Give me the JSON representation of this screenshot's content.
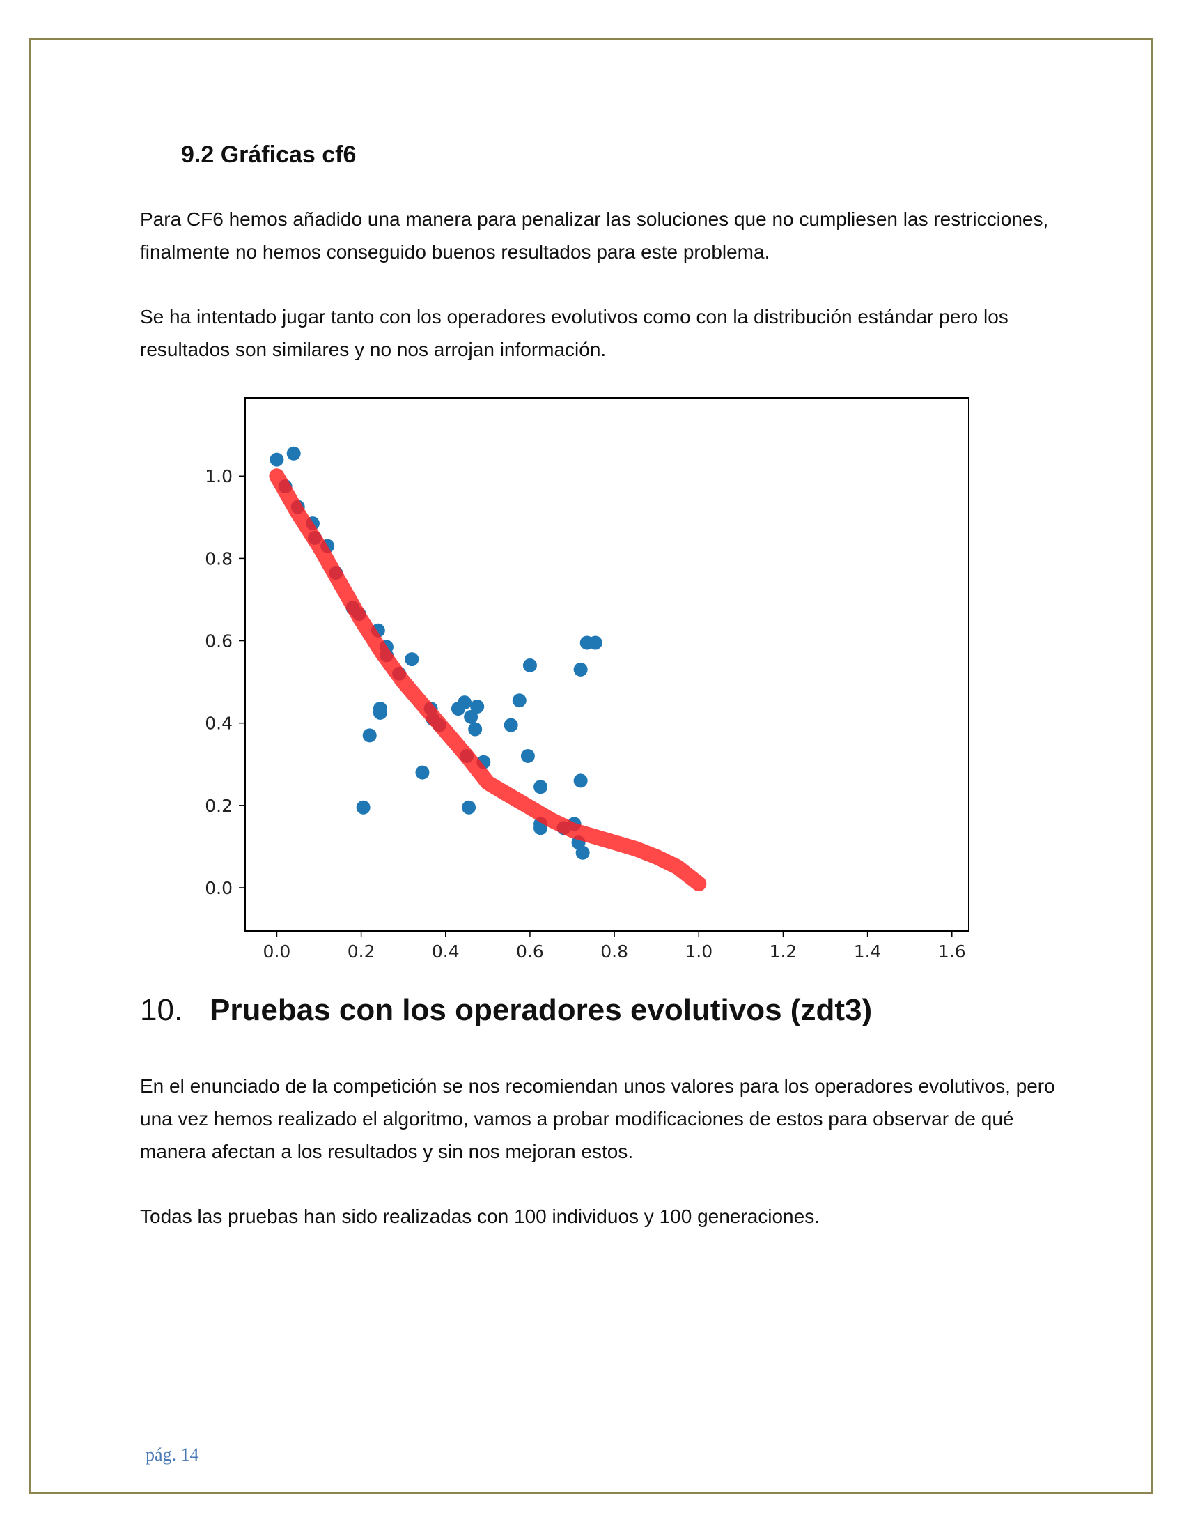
{
  "section_9_2": {
    "heading": "9.2 Gráficas cf6",
    "paragraph1": "Para CF6 hemos añadido una manera para penalizar las soluciones que no cumpliesen las restricciones, finalmente no hemos conseguido buenos resultados para este problema.",
    "paragraph2": "Se ha intentado jugar tanto con los operadores evolutivos como con la distribución estándar pero los resultados son similares y no nos arrojan información."
  },
  "section_10": {
    "number": "10.",
    "title": "Pruebas con los operadores evolutivos (zdt3)",
    "paragraph1": "En el enunciado de la competición se nos recomiendan unos valores para los operadores evolutivos, pero una vez hemos realizado el algoritmo, vamos a probar modificaciones de estos para observar de qué manera afectan a los resultados y sin nos mejoran estos.",
    "paragraph2": "Todas las pruebas han sido realizadas con 100 individuos y 100 generaciones."
  },
  "footer": {
    "page_label": "pág. 14"
  },
  "colors": {
    "border": "#8c8552",
    "scatter": "#1f77b4",
    "front": "#ff2020",
    "footer": "#4a7ab5"
  },
  "chart_data": {
    "type": "scatter",
    "title": "",
    "xlabel": "",
    "ylabel": "",
    "xlim": [
      -0.075,
      1.64
    ],
    "ylim": [
      -0.105,
      1.19
    ],
    "xticks": [
      "0.0",
      "0.2",
      "0.4",
      "0.6",
      "0.8",
      "1.0",
      "1.2",
      "1.4",
      "1.6"
    ],
    "yticks": [
      "0.0",
      "0.2",
      "0.4",
      "0.6",
      "0.8",
      "1.0"
    ],
    "grid": false,
    "series": [
      {
        "kind": "points",
        "points": [
          [
            0.0,
            1.04
          ],
          [
            0.04,
            1.055
          ],
          [
            0.02,
            0.975
          ],
          [
            0.05,
            0.925
          ],
          [
            0.085,
            0.885
          ],
          [
            0.09,
            0.85
          ],
          [
            0.12,
            0.83
          ],
          [
            0.14,
            0.765
          ],
          [
            0.18,
            0.68
          ],
          [
            0.195,
            0.665
          ],
          [
            0.24,
            0.625
          ],
          [
            0.26,
            0.585
          ],
          [
            0.26,
            0.565
          ],
          [
            0.29,
            0.52
          ],
          [
            0.32,
            0.555
          ],
          [
            0.245,
            0.435
          ],
          [
            0.245,
            0.425
          ],
          [
            0.22,
            0.37
          ],
          [
            0.205,
            0.195
          ],
          [
            0.345,
            0.28
          ],
          [
            0.365,
            0.435
          ],
          [
            0.37,
            0.41
          ],
          [
            0.385,
            0.395
          ],
          [
            0.43,
            0.435
          ],
          [
            0.445,
            0.45
          ],
          [
            0.46,
            0.415
          ],
          [
            0.475,
            0.44
          ],
          [
            0.47,
            0.385
          ],
          [
            0.45,
            0.32
          ],
          [
            0.49,
            0.305
          ],
          [
            0.455,
            0.195
          ],
          [
            0.555,
            0.395
          ],
          [
            0.575,
            0.455
          ],
          [
            0.6,
            0.54
          ],
          [
            0.595,
            0.32
          ],
          [
            0.625,
            0.245
          ],
          [
            0.625,
            0.155
          ],
          [
            0.625,
            0.145
          ],
          [
            0.68,
            0.145
          ],
          [
            0.705,
            0.155
          ],
          [
            0.715,
            0.11
          ],
          [
            0.725,
            0.085
          ],
          [
            0.72,
            0.53
          ],
          [
            0.72,
            0.26
          ],
          [
            0.735,
            0.595
          ],
          [
            0.755,
            0.595
          ]
        ]
      },
      {
        "kind": "front",
        "points": [
          [
            0.0,
            1.0
          ],
          [
            0.05,
            0.91
          ],
          [
            0.1,
            0.83
          ],
          [
            0.15,
            0.74
          ],
          [
            0.2,
            0.65
          ],
          [
            0.25,
            0.57
          ],
          [
            0.3,
            0.5
          ],
          [
            0.35,
            0.44
          ],
          [
            0.4,
            0.38
          ],
          [
            0.45,
            0.32
          ],
          [
            0.5,
            0.255
          ],
          [
            0.55,
            0.225
          ],
          [
            0.6,
            0.195
          ],
          [
            0.65,
            0.165
          ],
          [
            0.7,
            0.14
          ],
          [
            0.75,
            0.125
          ],
          [
            0.8,
            0.11
          ],
          [
            0.85,
            0.095
          ],
          [
            0.9,
            0.075
          ],
          [
            0.95,
            0.05
          ],
          [
            1.0,
            0.01
          ]
        ]
      }
    ]
  }
}
